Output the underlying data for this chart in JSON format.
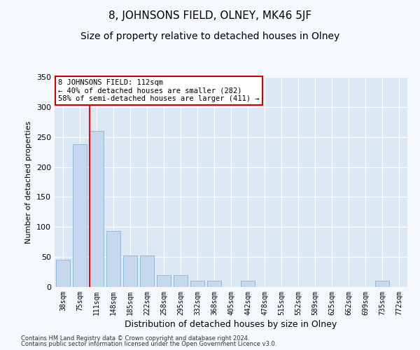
{
  "title": "8, JOHNSONS FIELD, OLNEY, MK46 5JF",
  "subtitle": "Size of property relative to detached houses in Olney",
  "xlabel": "Distribution of detached houses by size in Olney",
  "ylabel": "Number of detached properties",
  "categories": [
    "38sqm",
    "75sqm",
    "111sqm",
    "148sqm",
    "185sqm",
    "222sqm",
    "258sqm",
    "295sqm",
    "332sqm",
    "368sqm",
    "405sqm",
    "442sqm",
    "478sqm",
    "515sqm",
    "552sqm",
    "589sqm",
    "625sqm",
    "662sqm",
    "699sqm",
    "735sqm",
    "772sqm"
  ],
  "values": [
    45,
    238,
    260,
    93,
    52,
    52,
    20,
    20,
    10,
    10,
    0,
    10,
    0,
    0,
    0,
    0,
    0,
    0,
    0,
    10,
    0
  ],
  "bar_color": "#c5d8ee",
  "bar_edge_color": "#8ab4d8",
  "redline_bar_index": 2,
  "annotation_text": "8 JOHNSONS FIELD: 112sqm\n← 40% of detached houses are smaller (282)\n58% of semi-detached houses are larger (411) →",
  "annotation_box_facecolor": "#ffffff",
  "annotation_box_edgecolor": "#cc0000",
  "ylim": [
    0,
    350
  ],
  "yticks": [
    0,
    50,
    100,
    150,
    200,
    250,
    300,
    350
  ],
  "fig_facecolor": "#f5f8fc",
  "plot_bg_color": "#dde8f5",
  "footer_line1": "Contains HM Land Registry data © Crown copyright and database right 2024.",
  "footer_line2": "Contains public sector information licensed under the Open Government Licence v3.0.",
  "title_fontsize": 11,
  "subtitle_fontsize": 10,
  "xlabel_fontsize": 9,
  "ylabel_fontsize": 8,
  "annotation_fontsize": 7.5,
  "tick_fontsize": 7,
  "ytick_fontsize": 8
}
